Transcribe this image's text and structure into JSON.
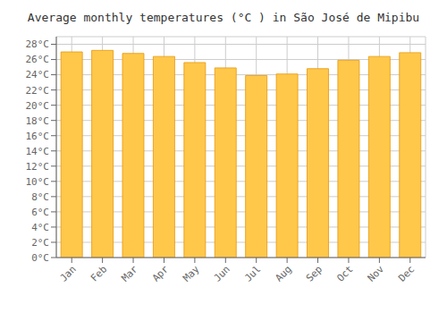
{
  "chart_data": {
    "type": "bar",
    "title": "Average monthly temperatures (°C ) in São José de Mipibu",
    "categories": [
      "Jan",
      "Feb",
      "Mar",
      "Apr",
      "May",
      "Jun",
      "Jul",
      "Aug",
      "Sep",
      "Oct",
      "Nov",
      "Dec"
    ],
    "values": [
      27.0,
      27.2,
      26.8,
      26.4,
      25.6,
      24.9,
      23.9,
      24.1,
      24.8,
      25.9,
      26.4,
      26.9
    ],
    "color": "#FFC84A",
    "ylim": [
      0,
      29
    ],
    "yticks": [
      {
        "value": 0,
        "label": "0°C"
      },
      {
        "value": 2,
        "label": "2°C"
      },
      {
        "value": 4,
        "label": "4°C"
      },
      {
        "value": 6,
        "label": "6°C"
      },
      {
        "value": 8,
        "label": "8°C"
      },
      {
        "value": 10,
        "label": "10°C"
      },
      {
        "value": 12,
        "label": "12°C"
      },
      {
        "value": 14,
        "label": "14°C"
      },
      {
        "value": 16,
        "label": "16°C"
      },
      {
        "value": 18,
        "label": "18°C"
      },
      {
        "value": 20,
        "label": "20°C"
      },
      {
        "value": 22,
        "label": "22°C"
      },
      {
        "value": 24,
        "label": "24°C"
      },
      {
        "value": 26,
        "label": "26°C"
      },
      {
        "value": 28,
        "label": "28°C"
      }
    ],
    "grid": true
  }
}
